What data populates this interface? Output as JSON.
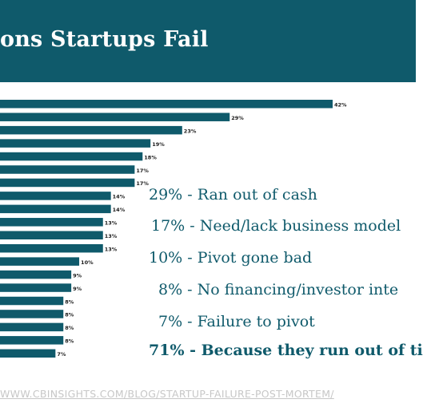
{
  "header": {
    "title": "ons Startups Fail"
  },
  "chart_data": {
    "type": "bar",
    "orientation": "horizontal",
    "values": [
      42,
      29,
      23,
      19,
      18,
      17,
      17,
      14,
      14,
      13,
      13,
      13,
      10,
      9,
      9,
      8,
      8,
      8,
      8,
      7
    ],
    "value_labels": [
      "42%",
      "29%",
      "23%",
      "19%",
      "18%",
      "17%",
      "17%",
      "14%",
      "14%",
      "13%",
      "13%",
      "13%",
      "10%",
      "9%",
      "9%",
      "8%",
      "8%",
      "8%",
      "8%",
      "7%"
    ],
    "xlim": [
      0,
      42
    ],
    "grid": false,
    "bar_color": "#0f5a6b"
  },
  "stats": [
    {
      "text": "29% - Ran out of cash",
      "bold": false
    },
    {
      "text": "17% - Need/lack business model",
      "bold": false
    },
    {
      "text": "10% - Pivot gone bad",
      "bold": false
    },
    {
      "text": "8% - No financing/investor inte",
      "bold": false
    },
    {
      "text": "7% - Failure to pivot",
      "bold": false
    },
    {
      "text": "71% - Because they run out of ti",
      "bold": true
    }
  ],
  "source_link": "WWW.CBINSIGHTS.COM/BLOG/STARTUP-FAILURE-POST-MORTEM/",
  "colors": {
    "accent": "#0f5a6b",
    "source": "#c7c7c7"
  }
}
